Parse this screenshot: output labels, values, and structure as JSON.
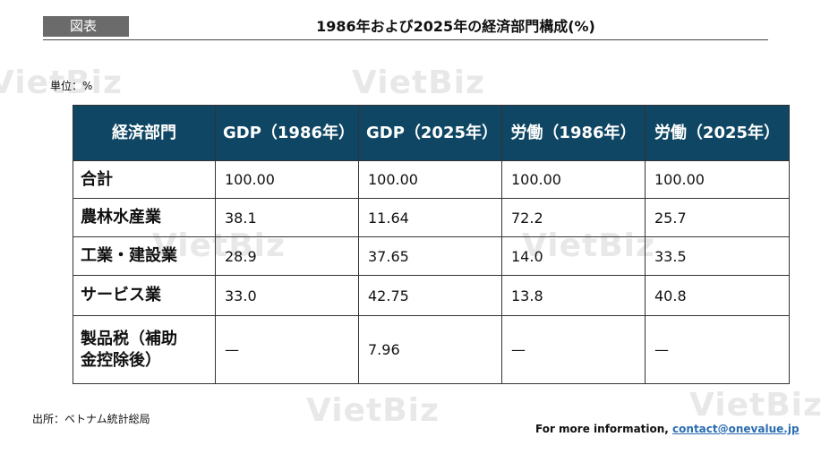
{
  "figure_tag": "図表",
  "title": "1986年および2025年の経済部門構成(%)",
  "unit": "単位：%",
  "watermark": "VietBiz",
  "table": {
    "headers": [
      "経済部門",
      "GDP（1986年）",
      "GDP（2025年）",
      "労働（1986年）",
      "労働（2025年）"
    ],
    "rows": [
      {
        "sector": "合計",
        "values": [
          "100.00",
          "100.00",
          "100.00",
          "100.00"
        ]
      },
      {
        "sector": "農林水産業",
        "values": [
          "38.1",
          "11.64",
          "72.2",
          "25.7"
        ]
      },
      {
        "sector": "工業・建設業",
        "values": [
          "28.9",
          "37.65",
          "14.0",
          "33.5"
        ]
      },
      {
        "sector": "サービス業",
        "values": [
          "33.0",
          "42.75",
          "13.8",
          "40.8"
        ]
      },
      {
        "sector": "製品税（補助金控除後）",
        "values": [
          "—",
          "7.96",
          "—",
          "—"
        ]
      }
    ]
  },
  "source": "出所：ベトナム統計総局",
  "contact": {
    "prefix": "For more information, ",
    "email": "contact@onevalue.jp"
  },
  "colors": {
    "header_bg": "#0e4663",
    "tag_bg": "#6b6b6b",
    "link": "#2a6cb0"
  }
}
